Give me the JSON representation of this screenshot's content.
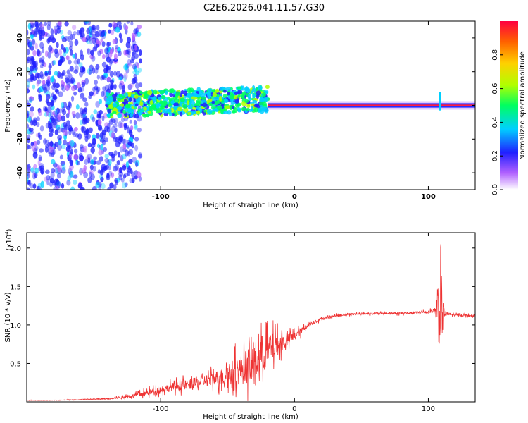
{
  "title": "C2E6.2026.041.11.57.G30",
  "chart_data": [
    {
      "type": "heatmap",
      "name": "spectrogram",
      "xlabel": "Height of straight line (km)",
      "ylabel": "Frequency (Hz)",
      "xlim": [
        -200,
        135
      ],
      "ylim": [
        -50,
        50
      ],
      "xticks": [
        -100,
        0,
        100
      ],
      "xtick_labels": [
        "-100",
        "0",
        "100"
      ],
      "yticks": [
        -40,
        -20,
        0,
        20,
        40
      ],
      "ytick_labels": [
        "-40",
        "-20",
        "0",
        "20",
        "40"
      ],
      "regions": [
        {
          "name": "noise",
          "x": [
            -200,
            -125
          ],
          "freq_range": [
            -50,
            50
          ],
          "amplitude": 0.2
        },
        {
          "name": "emerging signal",
          "x": [
            -140,
            -20
          ],
          "freq_range": [
            -8,
            10
          ],
          "amplitude": 0.45
        },
        {
          "name": "stable carrier",
          "x": [
            -20,
            135
          ],
          "freq": 0,
          "amplitude": 0.95
        },
        {
          "name": "spike",
          "x": [
            108,
            110
          ],
          "freq_range": [
            -3,
            8
          ],
          "amplitude": 0.3
        }
      ],
      "colorbar": {
        "label": "Normalized spectral amplitude",
        "range": [
          0.0,
          1.0
        ],
        "ticks": [
          0.0,
          0.2,
          0.4,
          0.6,
          0.8
        ],
        "tick_labels": [
          "0.0",
          "0.2",
          "0.4",
          "0.6",
          "0.8"
        ]
      }
    },
    {
      "type": "line",
      "name": "snr",
      "xlabel": "Height of straight line (km)",
      "ylabel": "SNR (10 * v/v)",
      "y_multiplier": "(x10",
      "y_multiplier_exp": "4",
      "xlim": [
        -200,
        135
      ],
      "ylim": [
        0,
        2.2
      ],
      "xticks": [
        -100,
        0,
        100
      ],
      "xtick_labels": [
        "-100",
        "0",
        "100"
      ],
      "yticks": [
        0.5,
        1.0,
        1.5,
        2.0
      ],
      "ytick_labels": [
        "0.5",
        "1.0",
        "1.5",
        "2.0"
      ],
      "series": [
        {
          "name": "SNR",
          "color": "#ee3333",
          "x": [
            -200,
            -180,
            -160,
            -140,
            -130,
            -120,
            -110,
            -100,
            -90,
            -80,
            -70,
            -60,
            -50,
            -40,
            -30,
            -25,
            -20,
            -15,
            -10,
            -5,
            0,
            5,
            10,
            20,
            30,
            40,
            60,
            80,
            100,
            105,
            107,
            109,
            110,
            112,
            115,
            120,
            135
          ],
          "values": [
            0.02,
            0.02,
            0.03,
            0.04,
            0.06,
            0.08,
            0.12,
            0.16,
            0.2,
            0.22,
            0.26,
            0.3,
            0.35,
            0.42,
            0.52,
            0.6,
            0.68,
            0.72,
            0.76,
            0.8,
            0.86,
            0.92,
            1.0,
            1.08,
            1.12,
            1.14,
            1.15,
            1.15,
            1.17,
            1.19,
            1.2,
            1.15,
            1.12,
            1.15,
            1.14,
            1.13,
            1.12
          ],
          "noise_amplitude": [
            0.005,
            0.005,
            0.01,
            0.02,
            0.03,
            0.05,
            0.08,
            0.1,
            0.12,
            0.14,
            0.16,
            0.2,
            0.3,
            0.45,
            0.55,
            0.6,
            0.5,
            0.35,
            0.25,
            0.18,
            0.12,
            0.1,
            0.06,
            0.04,
            0.03,
            0.03,
            0.03,
            0.03,
            0.04,
            0.05,
            0.9,
            1.0,
            0.8,
            0.1,
            0.05,
            0.03,
            0.03
          ]
        }
      ]
    }
  ]
}
